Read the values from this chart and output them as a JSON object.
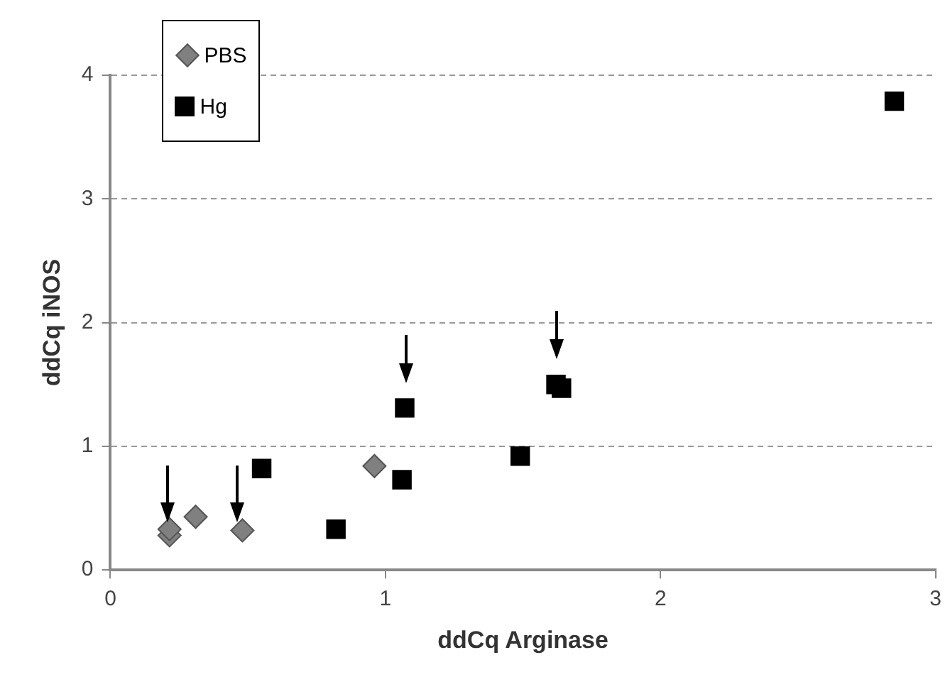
{
  "chart_data": {
    "type": "scatter",
    "xlabel": "ddCq Arginase",
    "ylabel": "ddCq iNOS",
    "series": [
      {
        "name": "PBS",
        "color": "#808080",
        "marker": "diamond",
        "x": [
          0.215,
          0.215,
          0.31,
          0.48,
          0.96
        ],
        "values": [
          0.28,
          0.33,
          0.43,
          0.32,
          0.84
        ]
      },
      {
        "name": "Hg",
        "color": "#000000",
        "marker": "square",
        "x": [
          0.55,
          0.82,
          1.06,
          1.07,
          1.49,
          1.62,
          1.64,
          2.85
        ],
        "values": [
          0.82,
          0.33,
          0.73,
          1.31,
          0.92,
          1.5,
          1.47,
          3.79
        ]
      }
    ],
    "xlim": [
      0,
      3
    ],
    "xticks": [
      0,
      1,
      2,
      3
    ],
    "ylim": [
      0,
      4
    ],
    "yticks": [
      0,
      1,
      2,
      3,
      4
    ],
    "grid": "y",
    "legend": "top left"
  }
}
